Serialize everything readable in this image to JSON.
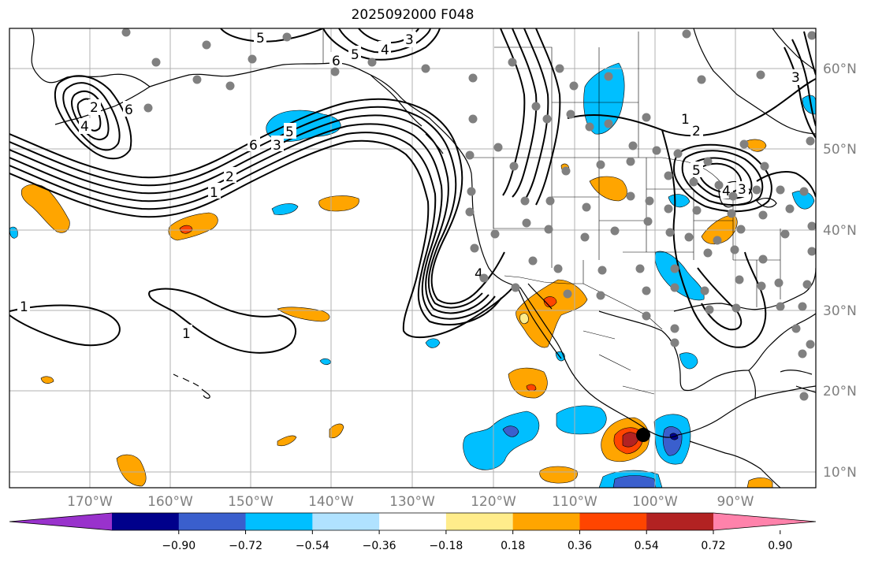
{
  "title": "2025092000 F048",
  "lon_labels": [
    "170°W",
    "160°W",
    "150°W",
    "140°W",
    "130°W",
    "120°W",
    "110°W",
    "100°W",
    "90°W"
  ],
  "lat_labels": [
    "60°N",
    "50°N",
    "40°N",
    "30°N",
    "20°N",
    "10°N"
  ],
  "colorbar": {
    "ticks": [
      "−0.90",
      "−0.72",
      "−0.54",
      "−0.36",
      "−0.18",
      "0.18",
      "0.36",
      "0.54",
      "0.72",
      "0.90"
    ],
    "colors": [
      "#9932cc",
      "#00008b",
      "#3a5fcd",
      "#00bfff",
      "#b0e2ff",
      "#ffffff",
      "#ffec8b",
      "#ffa500",
      "#ff4500",
      "#b22222",
      "#ff82ab"
    ]
  },
  "contour_labels": [
    "1",
    "2",
    "3",
    "4",
    "5",
    "6"
  ],
  "colors": {
    "contour": "#000000",
    "station": "#808080",
    "grid": "#b0b0b0",
    "coast": "#000000"
  }
}
